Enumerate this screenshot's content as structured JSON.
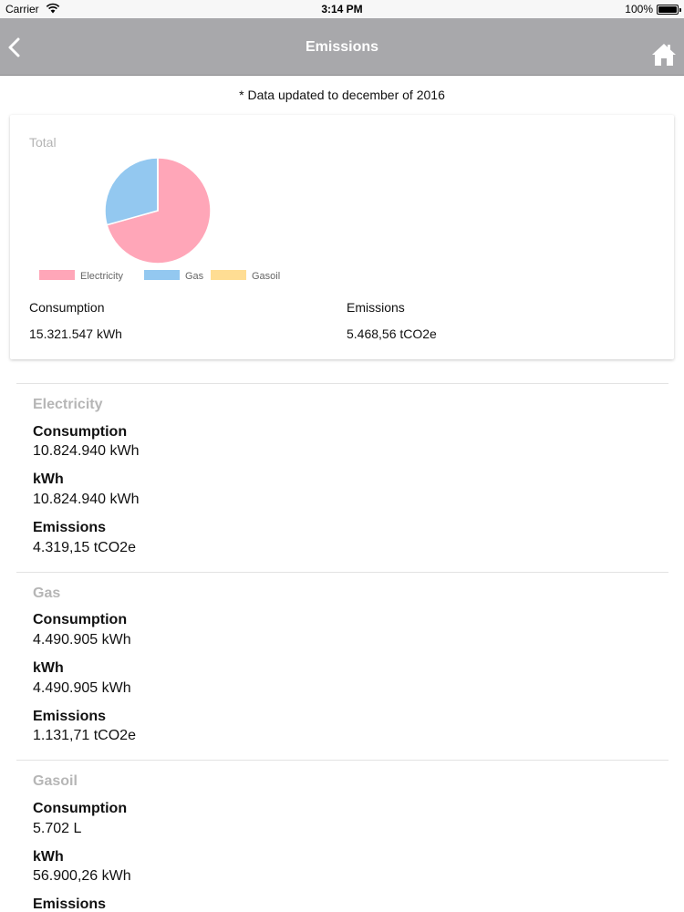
{
  "status_bar": {
    "carrier": "Carrier",
    "time": "3:14 PM",
    "battery": "100%"
  },
  "nav": {
    "title": "Emissions",
    "back_icon": "chevron-left-icon",
    "home_icon": "home-icon"
  },
  "note": "* Data updated to december of 2016",
  "summary": {
    "title": "Total",
    "consumption_label": "Consumption",
    "consumption_value": "15.321.547 kWh",
    "emissions_label": "Emissions",
    "emissions_value": "5.468,56 tCO2e"
  },
  "chart_data": {
    "type": "pie",
    "title": "Total",
    "labels": [
      "Electricity",
      "Gas",
      "Gasoil"
    ],
    "values": [
      10824940,
      4490905,
      5702
    ],
    "colors": [
      "#ffa6b8",
      "#93c8f0",
      "#ffdd93"
    ],
    "legend_position": "bottom-left"
  },
  "sections": [
    {
      "title": "Electricity",
      "consumption_label": "Consumption",
      "consumption_value": "10.824.940 kWh",
      "kwh_label": "kWh",
      "kwh_value": "10.824.940 kWh",
      "emissions_label": "Emissions",
      "emissions_value": "4.319,15 tCO2e"
    },
    {
      "title": "Gas",
      "consumption_label": "Consumption",
      "consumption_value": "4.490.905 kWh",
      "kwh_label": "kWh",
      "kwh_value": "4.490.905 kWh",
      "emissions_label": "Emissions",
      "emissions_value": "1.131,71 tCO2e"
    },
    {
      "title": "Gasoil",
      "consumption_label": "Consumption",
      "consumption_value": "5.702 L",
      "kwh_label": "kWh",
      "kwh_value": "56.900,26 kWh",
      "emissions_label": "Emissions"
    }
  ]
}
